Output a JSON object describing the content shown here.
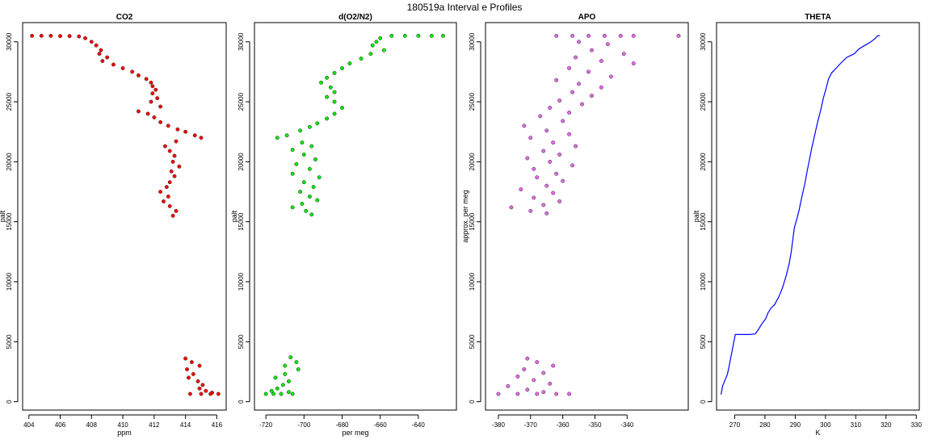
{
  "figure": {
    "title": "180519a   Interval e Profiles"
  },
  "chart_data": [
    {
      "type": "scatter",
      "title": "CO2",
      "xlabel": "ppm",
      "ylabel": "palt",
      "xlim": [
        403.6,
        416.6
      ],
      "ylim": [
        -700,
        31600
      ],
      "xticks": [
        404,
        406,
        408,
        410,
        412,
        414,
        416
      ],
      "yticks": [
        0,
        5000,
        10000,
        15000,
        20000,
        25000,
        30000
      ],
      "color": "#ff0000",
      "points": [
        [
          404.2,
          30500
        ],
        [
          404.8,
          30500
        ],
        [
          405.4,
          30500
        ],
        [
          406.0,
          30480
        ],
        [
          406.6,
          30480
        ],
        [
          407.2,
          30450
        ],
        [
          407.6,
          30300
        ],
        [
          408.0,
          30000
        ],
        [
          408.3,
          29700
        ],
        [
          408.6,
          29300
        ],
        [
          408.5,
          29000
        ],
        [
          409.0,
          28700
        ],
        [
          408.7,
          28400
        ],
        [
          409.4,
          28100
        ],
        [
          410.0,
          27800
        ],
        [
          410.6,
          27500
        ],
        [
          411.0,
          27200
        ],
        [
          411.5,
          26900
        ],
        [
          411.8,
          26600
        ],
        [
          411.9,
          26300
        ],
        [
          412.1,
          26000
        ],
        [
          411.9,
          25700
        ],
        [
          412.2,
          25300
        ],
        [
          411.8,
          25000
        ],
        [
          412.4,
          24600
        ],
        [
          411.0,
          24200
        ],
        [
          411.6,
          24000
        ],
        [
          412.0,
          23700
        ],
        [
          412.4,
          23300
        ],
        [
          412.9,
          23000
        ],
        [
          413.5,
          22700
        ],
        [
          414.0,
          22500
        ],
        [
          414.6,
          22200
        ],
        [
          415.0,
          22000
        ],
        [
          413.4,
          21700
        ],
        [
          412.7,
          21300
        ],
        [
          413.0,
          20900
        ],
        [
          413.3,
          20500
        ],
        [
          413.2,
          20000
        ],
        [
          413.6,
          19600
        ],
        [
          413.1,
          19200
        ],
        [
          413.3,
          18800
        ],
        [
          413.0,
          18300
        ],
        [
          412.8,
          17900
        ],
        [
          412.4,
          17500
        ],
        [
          412.9,
          17100
        ],
        [
          412.6,
          16700
        ],
        [
          413.0,
          16300
        ],
        [
          413.4,
          15900
        ],
        [
          413.2,
          15500
        ],
        [
          414.0,
          3600
        ],
        [
          414.4,
          3300
        ],
        [
          414.9,
          3000
        ],
        [
          414.1,
          2700
        ],
        [
          414.5,
          2300
        ],
        [
          414.2,
          2000
        ],
        [
          414.8,
          1700
        ],
        [
          415.1,
          1400
        ],
        [
          414.9,
          1100
        ],
        [
          415.3,
          900
        ],
        [
          415.7,
          750
        ],
        [
          414.3,
          650
        ],
        [
          415.0,
          650
        ],
        [
          415.6,
          650
        ],
        [
          416.1,
          650
        ]
      ],
      "line": []
    },
    {
      "type": "scatter",
      "title": "d(O2/N2)",
      "xlabel": "per meg",
      "ylabel": "palt",
      "xlim": [
        -726,
        -620
      ],
      "ylim": [
        -700,
        31600
      ],
      "xticks": [
        -720,
        -700,
        -680,
        -660,
        -640
      ],
      "yticks": [
        0,
        5000,
        10000,
        15000,
        20000,
        25000,
        30000
      ],
      "color": "#00ee00",
      "points": [
        [
          -627,
          30500
        ],
        [
          -633,
          30500
        ],
        [
          -640,
          30500
        ],
        [
          -647,
          30500
        ],
        [
          -654,
          30500
        ],
        [
          -660,
          30300
        ],
        [
          -662,
          30000
        ],
        [
          -664,
          29700
        ],
        [
          -658,
          29300
        ],
        [
          -665,
          29000
        ],
        [
          -670,
          28600
        ],
        [
          -676,
          28200
        ],
        [
          -680,
          27800
        ],
        [
          -684,
          27400
        ],
        [
          -688,
          27000
        ],
        [
          -691,
          26600
        ],
        [
          -686,
          26200
        ],
        [
          -684,
          25800
        ],
        [
          -688,
          25400
        ],
        [
          -684,
          25000
        ],
        [
          -680,
          24500
        ],
        [
          -684,
          24000
        ],
        [
          -688,
          23600
        ],
        [
          -693,
          23200
        ],
        [
          -697,
          22900
        ],
        [
          -702,
          22600
        ],
        [
          -709,
          22200
        ],
        [
          -714,
          22000
        ],
        [
          -701,
          21600
        ],
        [
          -696,
          21300
        ],
        [
          -706,
          21000
        ],
        [
          -700,
          20600
        ],
        [
          -694,
          20200
        ],
        [
          -704,
          19800
        ],
        [
          -697,
          19400
        ],
        [
          -706,
          19000
        ],
        [
          -692,
          18700
        ],
        [
          -700,
          18300
        ],
        [
          -695,
          17900
        ],
        [
          -702,
          17500
        ],
        [
          -697,
          17100
        ],
        [
          -693,
          16800
        ],
        [
          -701,
          16500
        ],
        [
          -706,
          16200
        ],
        [
          -699,
          15900
        ],
        [
          -696,
          15600
        ],
        [
          -707,
          3700
        ],
        [
          -704,
          3300
        ],
        [
          -710,
          3000
        ],
        [
          -703,
          2700
        ],
        [
          -710,
          2300
        ],
        [
          -715,
          2000
        ],
        [
          -708,
          1700
        ],
        [
          -711,
          1400
        ],
        [
          -714,
          1100
        ],
        [
          -717,
          900
        ],
        [
          -708,
          800
        ],
        [
          -720,
          650
        ],
        [
          -716,
          650
        ],
        [
          -712,
          650
        ],
        [
          -706,
          650
        ]
      ],
      "line": []
    },
    {
      "type": "scatter",
      "title": "APO",
      "xlabel": "",
      "ylabel": "approx. per meg",
      "xlim": [
        -384,
        -321
      ],
      "ylim": [
        -700,
        31600
      ],
      "xticks": [
        -380,
        -370,
        -360,
        -350,
        -340
      ],
      "yticks": [
        0,
        5000,
        10000,
        15000,
        20000,
        25000,
        30000
      ],
      "color": "#ee66ee",
      "points": [
        [
          -362,
          30500
        ],
        [
          -357,
          30500
        ],
        [
          -352,
          30500
        ],
        [
          -347,
          30500
        ],
        [
          -342,
          30500
        ],
        [
          -338,
          30500
        ],
        [
          -324,
          30500
        ],
        [
          -355,
          30000
        ],
        [
          -346,
          29800
        ],
        [
          -351,
          29300
        ],
        [
          -341,
          29000
        ],
        [
          -356,
          28700
        ],
        [
          -348,
          28400
        ],
        [
          -338,
          28200
        ],
        [
          -358,
          27800
        ],
        [
          -352,
          27500
        ],
        [
          -345,
          27100
        ],
        [
          -362,
          26800
        ],
        [
          -355,
          26500
        ],
        [
          -348,
          26200
        ],
        [
          -357,
          25800
        ],
        [
          -351,
          25500
        ],
        [
          -361,
          25100
        ],
        [
          -354,
          24800
        ],
        [
          -364,
          24500
        ],
        [
          -358,
          24100
        ],
        [
          -367,
          23800
        ],
        [
          -360,
          23400
        ],
        [
          -372,
          23000
        ],
        [
          -365,
          22600
        ],
        [
          -358,
          22300
        ],
        [
          -370,
          22000
        ],
        [
          -363,
          21600
        ],
        [
          -356,
          21300
        ],
        [
          -366,
          20900
        ],
        [
          -361,
          20600
        ],
        [
          -371,
          20300
        ],
        [
          -364,
          20000
        ],
        [
          -357,
          19700
        ],
        [
          -369,
          19400
        ],
        [
          -362,
          19000
        ],
        [
          -368,
          18700
        ],
        [
          -360,
          18400
        ],
        [
          -365,
          18000
        ],
        [
          -373,
          17700
        ],
        [
          -363,
          17400
        ],
        [
          -369,
          17000
        ],
        [
          -361,
          16700
        ],
        [
          -366,
          16400
        ],
        [
          -376,
          16200
        ],
        [
          -370,
          15900
        ],
        [
          -365,
          15700
        ],
        [
          -371,
          3600
        ],
        [
          -368,
          3300
        ],
        [
          -363,
          3000
        ],
        [
          -372,
          2700
        ],
        [
          -366,
          2400
        ],
        [
          -374,
          2100
        ],
        [
          -369,
          1800
        ],
        [
          -364,
          1500
        ],
        [
          -377,
          1300
        ],
        [
          -371,
          1000
        ],
        [
          -366,
          800
        ],
        [
          -380,
          650
        ],
        [
          -374,
          650
        ],
        [
          -368,
          650
        ],
        [
          -362,
          650
        ],
        [
          -358,
          650
        ]
      ],
      "line": []
    },
    {
      "type": "line",
      "title": "THETA",
      "xlabel": "K",
      "ylabel": "palt",
      "xlim": [
        264,
        331
      ],
      "ylim": [
        -700,
        31600
      ],
      "xticks": [
        270,
        280,
        290,
        300,
        310,
        320,
        330
      ],
      "yticks": [
        0,
        5000,
        10000,
        15000,
        20000,
        25000,
        30000
      ],
      "color": "#0000ff",
      "points": [],
      "line": [
        [
          265.5,
          600
        ],
        [
          265.7,
          900
        ],
        [
          266.0,
          1300
        ],
        [
          266.8,
          1800
        ],
        [
          267.6,
          2300
        ],
        [
          268.2,
          3000
        ],
        [
          268.8,
          3800
        ],
        [
          269.5,
          4700
        ],
        [
          270.2,
          5600
        ],
        [
          272.0,
          5600
        ],
        [
          275.0,
          5600
        ],
        [
          276.8,
          5650
        ],
        [
          277.8,
          6000
        ],
        [
          279.0,
          6500
        ],
        [
          280.2,
          6900
        ],
        [
          281.0,
          7400
        ],
        [
          282.0,
          7800
        ],
        [
          283.2,
          8100
        ],
        [
          284.5,
          8700
        ],
        [
          285.8,
          9500
        ],
        [
          287.0,
          10500
        ],
        [
          288.0,
          11500
        ],
        [
          288.7,
          12500
        ],
        [
          289.2,
          13500
        ],
        [
          289.7,
          14500
        ],
        [
          290.5,
          15200
        ],
        [
          291.3,
          16000
        ],
        [
          292.3,
          17200
        ],
        [
          293.2,
          18200
        ],
        [
          294.0,
          19300
        ],
        [
          294.8,
          20300
        ],
        [
          295.5,
          21200
        ],
        [
          296.4,
          22200
        ],
        [
          297.4,
          23300
        ],
        [
          298.4,
          24300
        ],
        [
          299.3,
          25300
        ],
        [
          300.2,
          26100
        ],
        [
          301.0,
          26900
        ],
        [
          302.0,
          27400
        ],
        [
          303.5,
          27800
        ],
        [
          305.0,
          28200
        ],
        [
          307.0,
          28700
        ],
        [
          309.5,
          29000
        ],
        [
          311.0,
          29400
        ],
        [
          313.0,
          29700
        ],
        [
          315.0,
          30000
        ],
        [
          316.5,
          30300
        ],
        [
          317.2,
          30500
        ],
        [
          318.0,
          30500
        ]
      ]
    }
  ]
}
